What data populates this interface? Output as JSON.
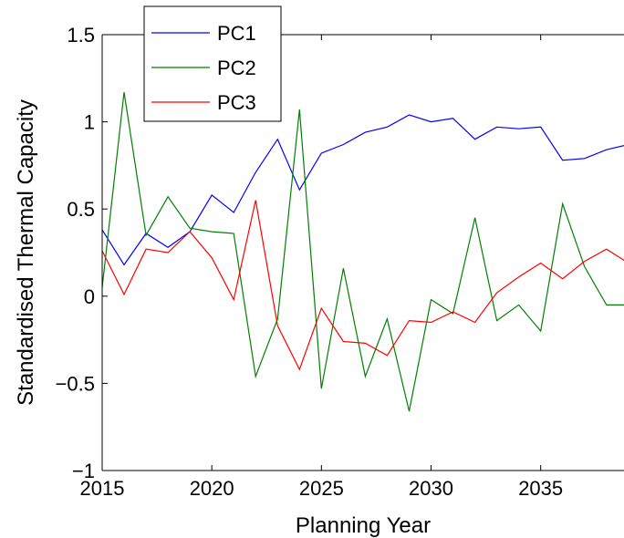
{
  "chart_data": {
    "type": "line",
    "title": "",
    "xlabel": "Planning Year",
    "ylabel": "Standardised Thermal Capacity",
    "xlim": [
      2015,
      2038.8
    ],
    "ylim": [
      -1,
      1.5
    ],
    "xticks": [
      2015,
      2020,
      2025,
      2030,
      2035
    ],
    "yticks": [
      -1,
      -0.5,
      0,
      0.5,
      1,
      1.5
    ],
    "xtick_labels": [
      "2015",
      "2020",
      "2025",
      "2030",
      "2035"
    ],
    "ytick_labels": [
      "−1",
      "−0.5",
      "0",
      "0.5",
      "1",
      "1.5"
    ],
    "grid": false,
    "legend_position": "top-left",
    "x": [
      2015,
      2016,
      2017,
      2018,
      2019,
      2020,
      2021,
      2022,
      2023,
      2024,
      2025,
      2026,
      2027,
      2028,
      2029,
      2030,
      2031,
      2032,
      2033,
      2034,
      2035,
      2036,
      2037,
      2038,
      2039
    ],
    "series": [
      {
        "name": "PC1",
        "color": "#0000ff",
        "values": [
          0.38,
          0.18,
          0.36,
          0.28,
          0.37,
          0.58,
          0.48,
          0.71,
          0.9,
          0.61,
          0.82,
          0.87,
          0.94,
          0.97,
          1.04,
          1.0,
          1.02,
          0.9,
          0.97,
          0.96,
          0.97,
          0.78,
          0.79,
          0.84,
          0.87
        ]
      },
      {
        "name": "PC2",
        "color": "#008000",
        "values": [
          0.05,
          1.17,
          0.35,
          0.57,
          0.39,
          0.37,
          0.36,
          -0.46,
          -0.13,
          1.07,
          -0.53,
          0.16,
          -0.46,
          -0.13,
          -0.66,
          -0.02,
          -0.1,
          0.45,
          -0.14,
          -0.05,
          -0.2,
          0.53,
          0.17,
          -0.05,
          -0.05
        ]
      },
      {
        "name": "PC3",
        "color": "#ff0000",
        "values": [
          0.26,
          0.01,
          0.27,
          0.25,
          0.37,
          0.22,
          -0.02,
          0.55,
          -0.17,
          -0.42,
          -0.07,
          -0.26,
          -0.27,
          -0.34,
          -0.14,
          -0.15,
          -0.09,
          -0.15,
          0.02,
          0.11,
          0.19,
          0.1,
          0.2,
          0.27,
          0.19
        ]
      }
    ]
  }
}
